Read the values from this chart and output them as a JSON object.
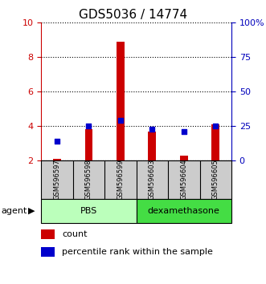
{
  "title": "GDS5036 / 14774",
  "samples": [
    "GSM596597",
    "GSM596598",
    "GSM596599",
    "GSM596603",
    "GSM596604",
    "GSM596605"
  ],
  "count_values": [
    2.1,
    3.8,
    8.9,
    3.7,
    2.3,
    4.1
  ],
  "percentile_values": [
    14,
    25,
    29,
    23,
    21,
    25
  ],
  "ylim_left": [
    2,
    10
  ],
  "ylim_right": [
    0,
    100
  ],
  "yticks_left": [
    2,
    4,
    6,
    8,
    10
  ],
  "yticks_right": [
    0,
    25,
    50,
    75,
    100
  ],
  "ytick_labels_right": [
    "0",
    "25",
    "50",
    "75",
    "100%"
  ],
  "groups": [
    {
      "label": "PBS",
      "color": "#bbffbb",
      "indices": [
        0,
        1,
        2
      ]
    },
    {
      "label": "dexamethasone",
      "color": "#44dd44",
      "indices": [
        3,
        4,
        5
      ]
    }
  ],
  "bar_color": "#cc0000",
  "dot_color": "#0000cc",
  "bar_width": 0.25,
  "dot_size": 25,
  "left_axis_color": "#cc0000",
  "right_axis_color": "#0000bb",
  "title_fontsize": 11,
  "legend_count_label": "count",
  "legend_percentile_label": "percentile rank within the sample",
  "xlabel_agent": "agent",
  "sample_box_color": "#cccccc"
}
